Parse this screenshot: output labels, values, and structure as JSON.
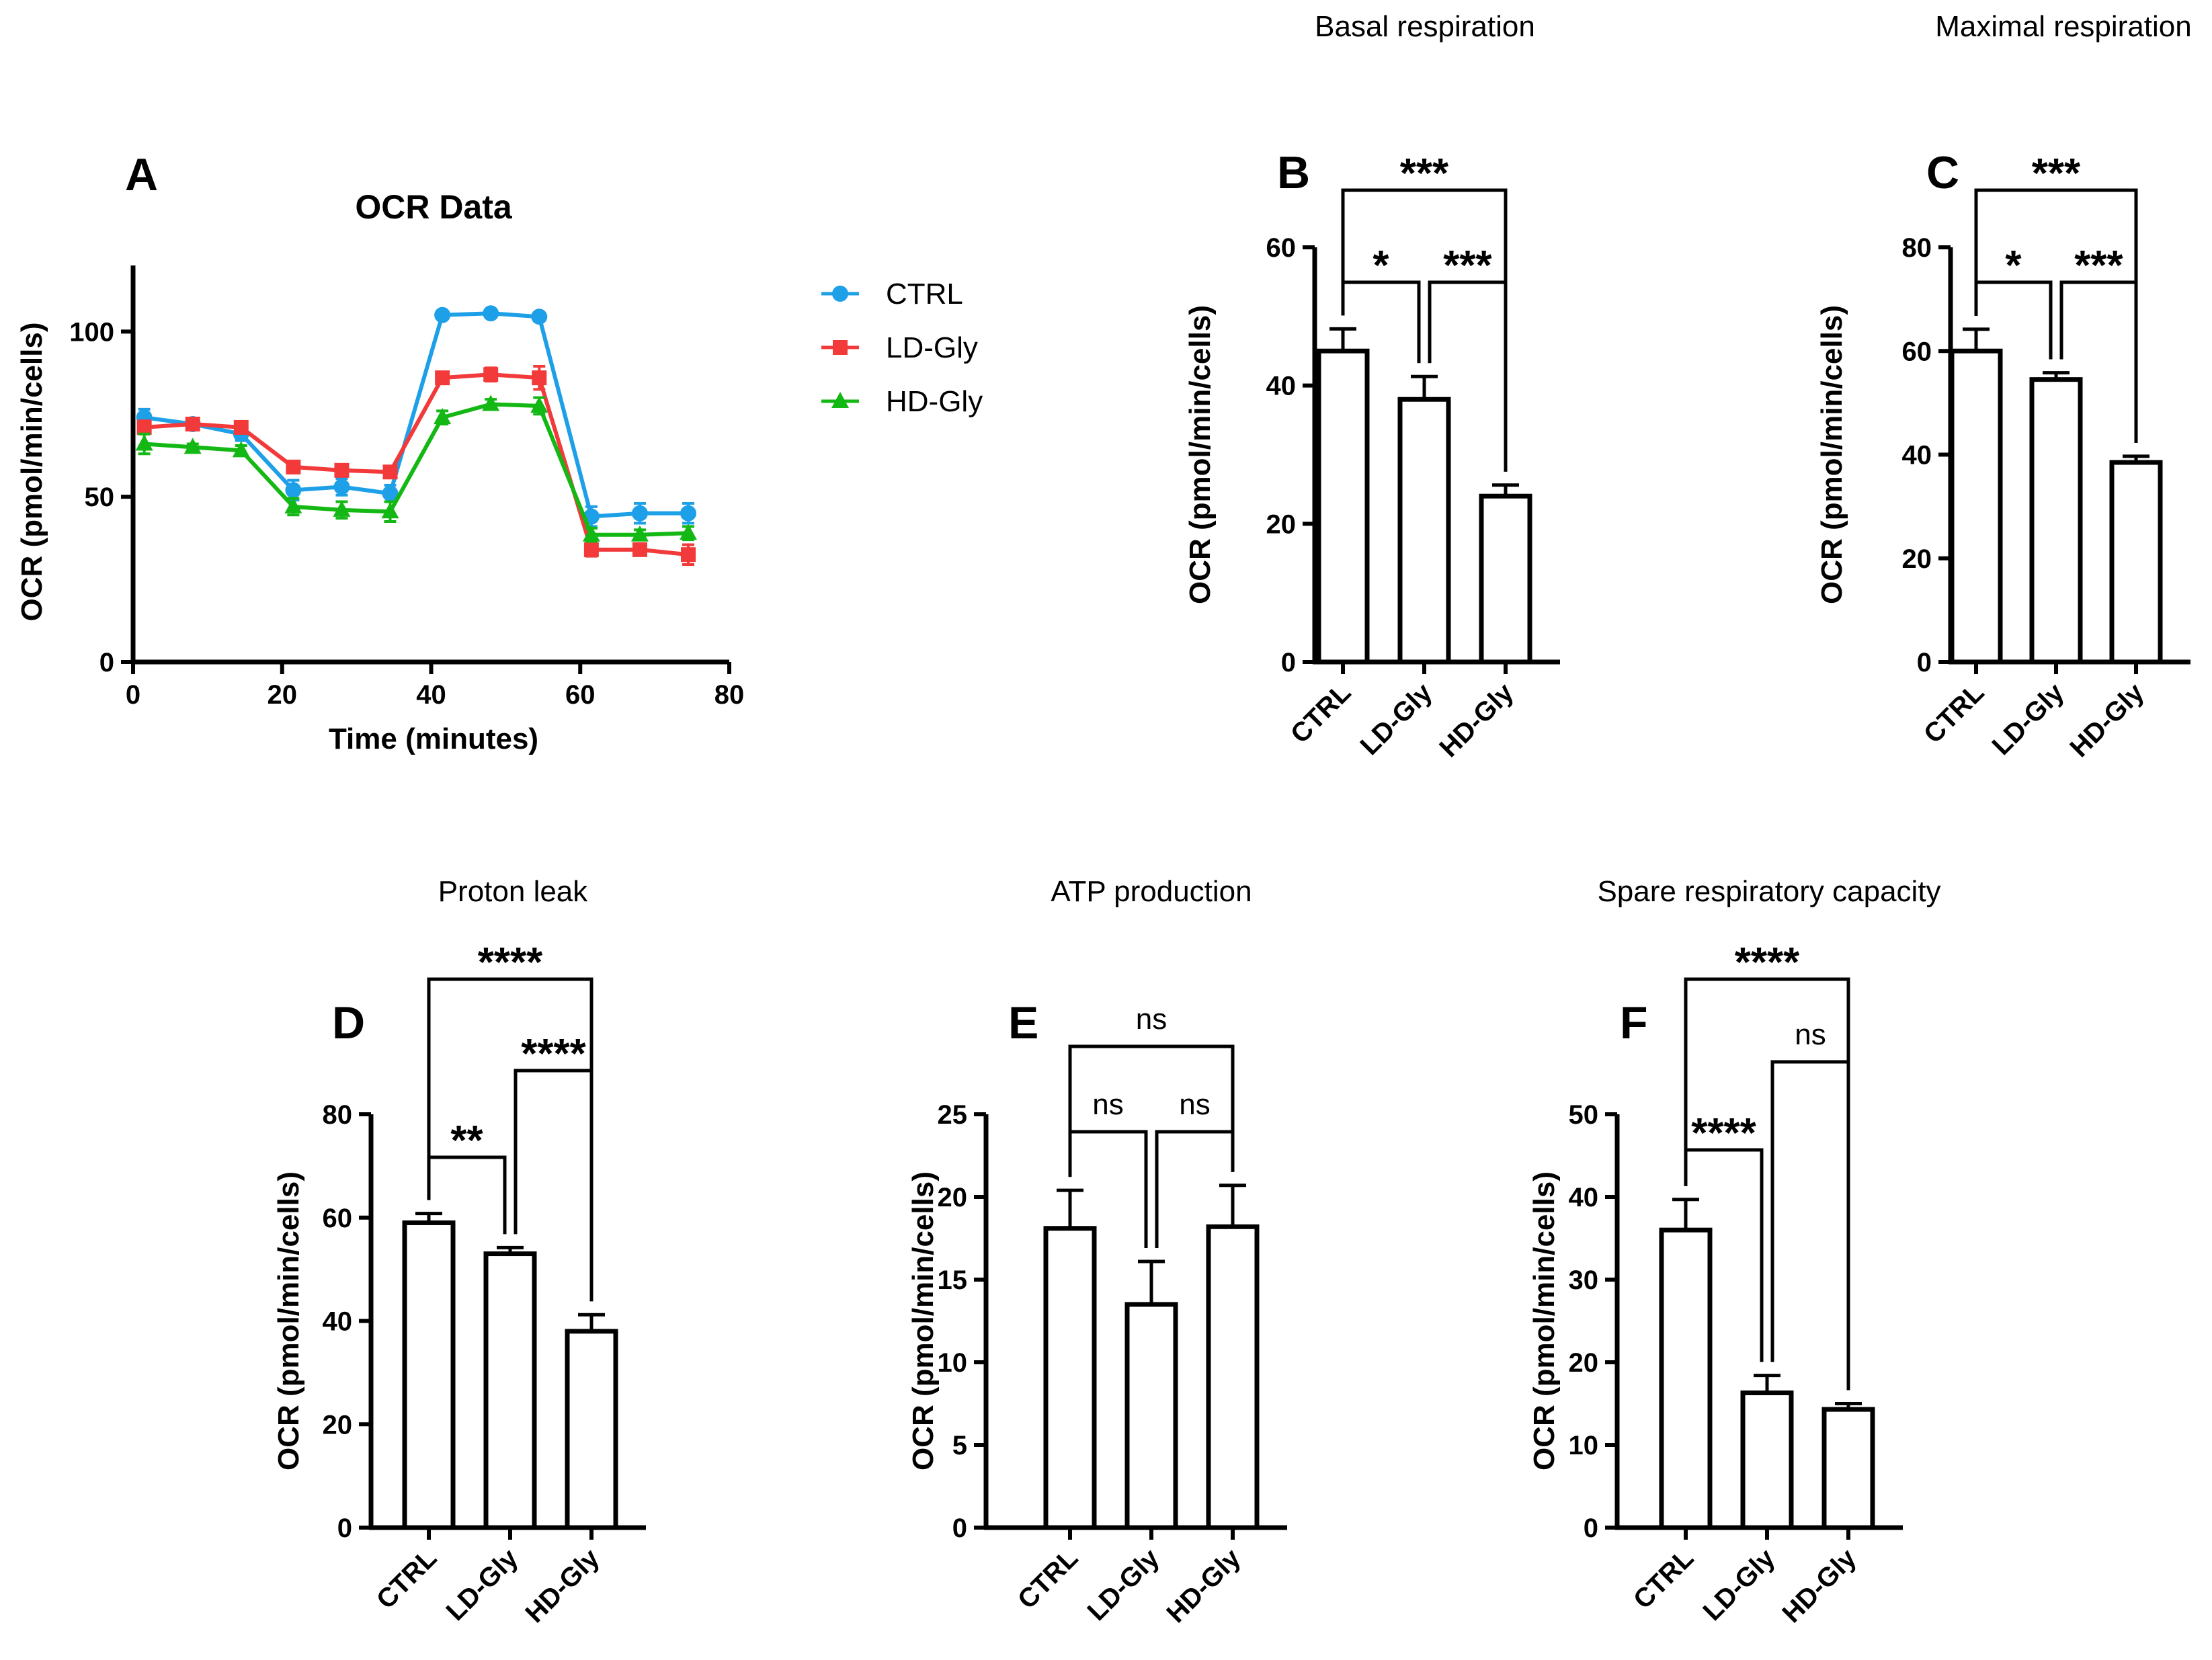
{
  "figure": {
    "series_colors": {
      "CTRL": "#1ea0e8",
      "LD-Gly": "#f23a3a",
      "HD-Gly": "#14b814"
    }
  },
  "chart_data": [
    {
      "panel": "A",
      "type": "line",
      "title": "OCR Data",
      "xlabel": "Time (minutes)",
      "ylabel": "OCR (pmol/min/cells)",
      "xlim": [
        0,
        80
      ],
      "ylim": [
        0,
        120
      ],
      "xticks": [
        0,
        20,
        40,
        60,
        80
      ],
      "yticks": [
        0,
        50,
        100
      ],
      "x": [
        1.5,
        8,
        14.5,
        21.5,
        28,
        34.5,
        41.5,
        48,
        54.5,
        61.5,
        68,
        74.5
      ],
      "legend": "right",
      "series": [
        {
          "name": "CTRL",
          "marker": "circle",
          "color": "#1ea0e8",
          "values": [
            74,
            72,
            69,
            52,
            53,
            51,
            105,
            105.5,
            104.5,
            44,
            45,
            45
          ],
          "errors": [
            2.5,
            1.5,
            2,
            3,
            2.5,
            2.5,
            1,
            1,
            1,
            3,
            3,
            3
          ]
        },
        {
          "name": "LD-Gly",
          "marker": "square",
          "color": "#f23a3a",
          "values": [
            71,
            72,
            71,
            59,
            58,
            57.5,
            86,
            87,
            86,
            34,
            34,
            32.5
          ],
          "errors": [
            2,
            1.5,
            1.5,
            1.5,
            1,
            1.5,
            1.5,
            2,
            3.5,
            2,
            1.5,
            3
          ]
        },
        {
          "name": "HD-Gly",
          "marker": "triangle",
          "color": "#14b814",
          "values": [
            66,
            65,
            64,
            47,
            46,
            45.5,
            74,
            78,
            77.5,
            38.5,
            38.5,
            39
          ],
          "errors": [
            3,
            1,
            1.5,
            2.5,
            2.5,
            3,
            2,
            1.5,
            2.5,
            2,
            1.5,
            2
          ]
        }
      ]
    },
    {
      "panel": "B",
      "type": "bar",
      "header": "Basal respiration",
      "ylabel": "OCR (pmol/min/cells)",
      "ylim": [
        0,
        60
      ],
      "yticks": [
        0,
        20,
        40,
        60
      ],
      "categories": [
        "CTRL",
        "LD-Gly",
        "HD-Gly"
      ],
      "values": [
        45,
        38,
        24
      ],
      "errors": [
        3.2,
        3.3,
        1.6
      ],
      "comparisons": [
        {
          "pair": [
            0,
            1
          ],
          "label": "*",
          "level": 1
        },
        {
          "pair": [
            1,
            2
          ],
          "label": "***",
          "level": 1
        },
        {
          "pair": [
            0,
            2
          ],
          "label": "***",
          "level": 2
        }
      ]
    },
    {
      "panel": "C",
      "type": "bar",
      "header": "Maximal respiration",
      "ylabel": "OCR (pmol/min/cells)",
      "ylim": [
        0,
        80
      ],
      "yticks": [
        0,
        20,
        40,
        60,
        80
      ],
      "categories": [
        "CTRL",
        "LD-Gly",
        "HD-Gly"
      ],
      "values": [
        60,
        54.5,
        38.5
      ],
      "errors": [
        4.2,
        1.3,
        1.2
      ],
      "comparisons": [
        {
          "pair": [
            0,
            1
          ],
          "label": "*",
          "level": 1
        },
        {
          "pair": [
            1,
            2
          ],
          "label": "***",
          "level": 1
        },
        {
          "pair": [
            0,
            2
          ],
          "label": "***",
          "level": 2
        }
      ]
    },
    {
      "panel": "D",
      "type": "bar",
      "header": "Proton leak",
      "ylabel": "OCR (pmol/min/cells)",
      "ylim": [
        0,
        80
      ],
      "yticks": [
        0,
        20,
        40,
        60,
        80
      ],
      "categories": [
        "CTRL",
        "LD-Gly",
        "HD-Gly"
      ],
      "values": [
        59,
        53,
        38
      ],
      "errors": [
        1.8,
        1.2,
        3.2
      ],
      "comparisons": [
        {
          "pair": [
            0,
            1
          ],
          "label": "**",
          "level": 1
        },
        {
          "pair": [
            1,
            2
          ],
          "label": "****",
          "level": 2
        },
        {
          "pair": [
            0,
            2
          ],
          "label": "****",
          "level": 3
        }
      ]
    },
    {
      "panel": "E",
      "type": "bar",
      "header": "ATP production",
      "ylabel": "OCR (pmol/min/cells)",
      "ylim": [
        0,
        25
      ],
      "yticks": [
        0,
        5,
        10,
        15,
        20,
        25
      ],
      "categories": [
        "CTRL",
        "LD-Gly",
        "HD-Gly"
      ],
      "values": [
        18.1,
        13.5,
        18.2
      ],
      "errors": [
        2.3,
        2.6,
        2.5
      ],
      "comparisons": [
        {
          "pair": [
            0,
            1
          ],
          "label": "ns",
          "level": 1
        },
        {
          "pair": [
            1,
            2
          ],
          "label": "ns",
          "level": 1
        },
        {
          "pair": [
            0,
            2
          ],
          "label": "ns",
          "level": 2
        }
      ]
    },
    {
      "panel": "F",
      "type": "bar",
      "header": "Spare respiratory capacity",
      "ylabel": "OCR (pmol/min/cells)",
      "ylim": [
        0,
        50
      ],
      "yticks": [
        0,
        10,
        20,
        30,
        40,
        50
      ],
      "categories": [
        "CTRL",
        "LD-Gly",
        "HD-Gly"
      ],
      "values": [
        36,
        16.3,
        14.3
      ],
      "errors": [
        3.7,
        2.1,
        0.7
      ],
      "comparisons": [
        {
          "pair": [
            0,
            1
          ],
          "label": "****",
          "level": 1
        },
        {
          "pair": [
            1,
            2
          ],
          "label": "ns",
          "level": 2
        },
        {
          "pair": [
            0,
            2
          ],
          "label": "****",
          "level": 3
        }
      ]
    }
  ]
}
